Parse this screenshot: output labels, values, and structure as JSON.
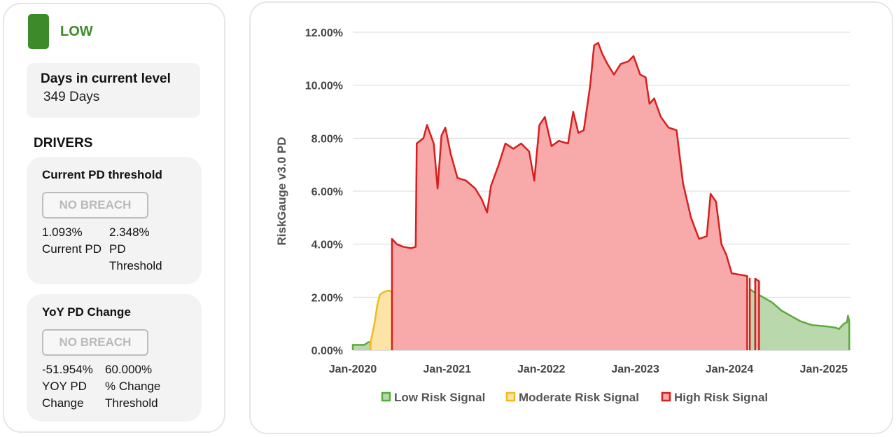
{
  "status": {
    "level_label": "LOW",
    "level_color": "#3c8a2a",
    "days_title": "Days in current level",
    "days_value": "349 Days"
  },
  "drivers": {
    "heading": "DRIVERS",
    "current_pd": {
      "title": "Current PD threshold",
      "button_label": "NO BREACH",
      "value1": "1.093%",
      "label1": "Current PD",
      "value2": "2.348%",
      "label2": "PD Threshold"
    },
    "yoy": {
      "title": "YoY PD Change",
      "button_label": "NO BREACH",
      "value1": "-51.954%",
      "label1": "YOY PD Change",
      "value2": "60.000%",
      "label2": "% Change Threshold"
    }
  },
  "chart_data": {
    "type": "area",
    "ylabel": "RiskGauge v3.0 PD",
    "xlabel": "",
    "ylim": [
      0,
      12
    ],
    "y_ticks": [
      "0.00%",
      "2.00%",
      "4.00%",
      "6.00%",
      "8.00%",
      "10.00%",
      "12.00%"
    ],
    "x_ticks": [
      "Jan-2020",
      "Jan-2021",
      "Jan-2022",
      "Jan-2023",
      "Jan-2024",
      "Jan-2025"
    ],
    "x_range": [
      "2020-01",
      "2025-05"
    ],
    "grid": "horizontal",
    "legend_position": "bottom",
    "series": [
      {
        "name": "Low Risk Signal",
        "color": "#5aab3a",
        "fill": "#b9d9ad",
        "points": [
          [
            "2020-01-01",
            0.2
          ],
          [
            "2020-02-15",
            0.2
          ],
          [
            "2020-03-01",
            0.3
          ],
          [
            "2020-03-10",
            0.3
          ],
          [
            "2024-03-20",
            2.3
          ],
          [
            "2024-04-05",
            2.2
          ],
          [
            "2024-05-10",
            2.0
          ],
          [
            "2024-06-15",
            1.8
          ],
          [
            "2024-07-20",
            1.5
          ],
          [
            "2024-08-25",
            1.3
          ],
          [
            "2024-10-01",
            1.1
          ],
          [
            "2024-11-15",
            0.95
          ],
          [
            "2025-01-10",
            0.9
          ],
          [
            "2025-02-15",
            0.85
          ],
          [
            "2025-03-01",
            0.8
          ],
          [
            "2025-03-20",
            1.0
          ],
          [
            "2025-04-01",
            1.05
          ],
          [
            "2025-04-05",
            1.3
          ],
          [
            "2025-04-10",
            1.1
          ]
        ]
      },
      {
        "name": "Moderate Risk Signal",
        "color": "#f0bb20",
        "fill": "#fbe4a6",
        "points": [
          [
            "2020-03-10",
            0.3
          ],
          [
            "2020-03-25",
            1.0
          ],
          [
            "2020-04-05",
            1.7
          ],
          [
            "2020-04-15",
            2.1
          ],
          [
            "2020-05-01",
            2.2
          ],
          [
            "2020-05-20",
            2.25
          ],
          [
            "2020-06-01",
            2.2
          ]
        ]
      },
      {
        "name": "High Risk Signal",
        "color": "#d61f1f",
        "fill": "#f7aaa9",
        "points": [
          [
            "2020-06-01",
            4.2
          ],
          [
            "2020-06-20",
            4.0
          ],
          [
            "2020-07-15",
            3.9
          ],
          [
            "2020-08-15",
            3.85
          ],
          [
            "2020-09-01",
            3.9
          ],
          [
            "2020-09-05",
            7.8
          ],
          [
            "2020-10-01",
            8.0
          ],
          [
            "2020-10-15",
            8.5
          ],
          [
            "2020-11-10",
            7.8
          ],
          [
            "2020-11-25",
            6.1
          ],
          [
            "2020-12-10",
            8.1
          ],
          [
            "2020-12-25",
            8.4
          ],
          [
            "2021-01-15",
            7.4
          ],
          [
            "2021-02-10",
            6.5
          ],
          [
            "2021-03-15",
            6.4
          ],
          [
            "2021-04-20",
            6.1
          ],
          [
            "2021-05-15",
            5.7
          ],
          [
            "2021-06-05",
            5.2
          ],
          [
            "2021-06-20",
            6.2
          ],
          [
            "2021-07-20",
            7.0
          ],
          [
            "2021-08-15",
            7.8
          ],
          [
            "2021-09-15",
            7.6
          ],
          [
            "2021-10-15",
            7.8
          ],
          [
            "2021-11-15",
            7.5
          ],
          [
            "2021-12-05",
            6.4
          ],
          [
            "2021-12-25",
            8.5
          ],
          [
            "2022-01-15",
            8.8
          ],
          [
            "2022-02-10",
            7.7
          ],
          [
            "2022-03-10",
            7.9
          ],
          [
            "2022-04-15",
            7.8
          ],
          [
            "2022-05-05",
            9.0
          ],
          [
            "2022-05-25",
            8.2
          ],
          [
            "2022-06-15",
            8.3
          ],
          [
            "2022-07-10",
            10.0
          ],
          [
            "2022-07-25",
            11.5
          ],
          [
            "2022-08-10",
            11.6
          ],
          [
            "2022-08-25",
            11.2
          ],
          [
            "2022-09-15",
            10.8
          ],
          [
            "2022-10-10",
            10.4
          ],
          [
            "2022-11-05",
            10.8
          ],
          [
            "2022-12-05",
            10.9
          ],
          [
            "2022-12-25",
            11.1
          ],
          [
            "2023-01-20",
            10.4
          ],
          [
            "2023-02-10",
            10.3
          ],
          [
            "2023-02-25",
            9.3
          ],
          [
            "2023-03-15",
            9.5
          ],
          [
            "2023-04-10",
            8.8
          ],
          [
            "2023-05-10",
            8.4
          ],
          [
            "2023-06-10",
            8.3
          ],
          [
            "2023-07-05",
            6.3
          ],
          [
            "2023-08-05",
            5.0
          ],
          [
            "2023-09-05",
            4.2
          ],
          [
            "2023-10-05",
            4.3
          ],
          [
            "2023-10-20",
            5.9
          ],
          [
            "2023-11-10",
            5.6
          ],
          [
            "2023-12-01",
            4.0
          ],
          [
            "2023-12-20",
            3.6
          ],
          [
            "2024-01-10",
            2.9
          ],
          [
            "2024-02-10",
            2.85
          ],
          [
            "2024-03-10",
            2.8
          ],
          [
            "2024-03-20",
            2.7
          ],
          [
            "2024-04-10",
            2.7
          ],
          [
            "2024-04-25",
            2.6
          ]
        ]
      }
    ]
  }
}
